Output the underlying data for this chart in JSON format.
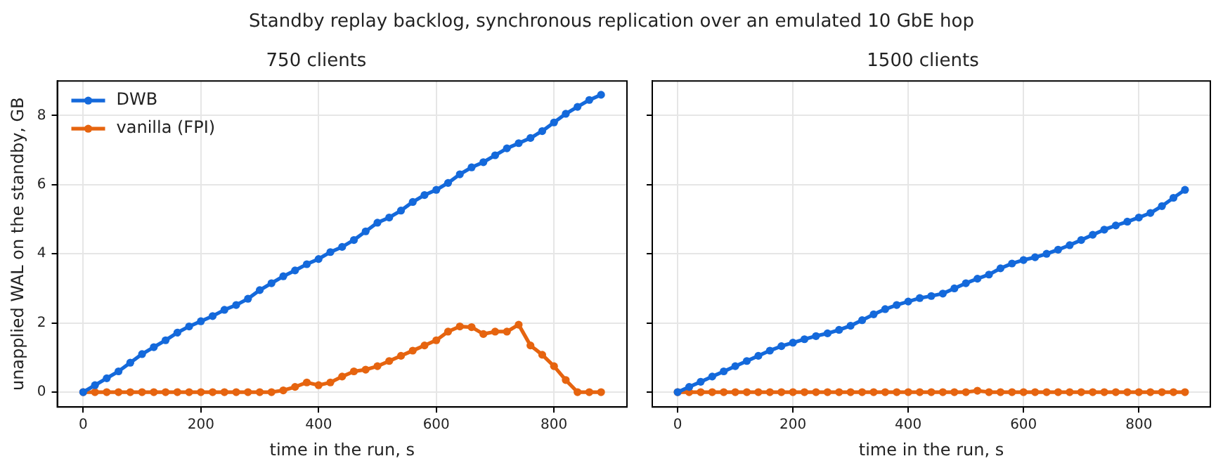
{
  "chart_data": [
    {
      "type": "line",
      "title": "750 clients",
      "annotations": [
        "Standby replay backlog, synchronous replication over an emulated 10 GbE hop"
      ],
      "xlabel": "time in the run, s",
      "ylabel": "unapplied WAL on the standby, GB",
      "x": [
        0,
        20,
        40,
        60,
        80,
        100,
        120,
        140,
        160,
        180,
        200,
        220,
        240,
        260,
        280,
        300,
        320,
        340,
        360,
        380,
        400,
        420,
        440,
        460,
        480,
        500,
        520,
        540,
        560,
        580,
        600,
        620,
        640,
        660,
        680,
        700,
        720,
        740,
        760,
        780,
        800,
        820,
        840,
        860,
        880
      ],
      "series": [
        {
          "name": "DWB",
          "color": "#1469db",
          "values": [
            0,
            0.2,
            0.4,
            0.6,
            0.85,
            1.1,
            1.3,
            1.5,
            1.72,
            1.9,
            2.05,
            2.2,
            2.38,
            2.52,
            2.7,
            2.95,
            3.15,
            3.35,
            3.52,
            3.7,
            3.85,
            4.05,
            4.2,
            4.4,
            4.65,
            4.9,
            5.05,
            5.25,
            5.5,
            5.7,
            5.85,
            6.05,
            6.3,
            6.5,
            6.65,
            6.85,
            7.05,
            7.2,
            7.35,
            7.55,
            7.8,
            8.05,
            8.25,
            8.45,
            8.6
          ]
        },
        {
          "name": "vanilla (FPI)",
          "color": "#e6640f",
          "values": [
            0,
            0,
            0,
            0,
            0,
            0,
            0,
            0,
            0,
            0,
            0,
            0,
            0,
            0,
            0,
            0,
            0,
            0.05,
            0.15,
            0.28,
            0.2,
            0.28,
            0.45,
            0.6,
            0.65,
            0.75,
            0.9,
            1.05,
            1.2,
            1.35,
            1.5,
            1.75,
            1.9,
            1.88,
            1.68,
            1.75,
            1.75,
            1.95,
            1.35,
            1.08,
            0.75,
            0.35,
            0,
            0,
            0
          ]
        }
      ],
      "xlim": [
        -44,
        924
      ],
      "xticks": [
        0,
        200,
        400,
        600,
        800
      ],
      "ylim": [
        -0.43,
        9.0
      ],
      "yticks": [
        0,
        2,
        4,
        6,
        8
      ],
      "grid": true,
      "legend": "top left",
      "marker": "circle",
      "line_style": "solid"
    },
    {
      "type": "line",
      "title": "1500 clients",
      "xlabel": "time in the run, s",
      "x": [
        0,
        20,
        40,
        60,
        80,
        100,
        120,
        140,
        160,
        180,
        200,
        220,
        240,
        260,
        280,
        300,
        320,
        340,
        360,
        380,
        400,
        420,
        440,
        460,
        480,
        500,
        520,
        540,
        560,
        580,
        600,
        620,
        640,
        660,
        680,
        700,
        720,
        740,
        760,
        780,
        800,
        820,
        840,
        860,
        880
      ],
      "series": [
        {
          "color": "#1469db",
          "values": [
            0,
            0.15,
            0.3,
            0.45,
            0.6,
            0.75,
            0.9,
            1.05,
            1.2,
            1.33,
            1.43,
            1.53,
            1.62,
            1.7,
            1.8,
            1.92,
            2.08,
            2.25,
            2.4,
            2.52,
            2.62,
            2.72,
            2.78,
            2.85,
            3.0,
            3.15,
            3.28,
            3.4,
            3.58,
            3.72,
            3.82,
            3.9,
            4.0,
            4.12,
            4.25,
            4.4,
            4.55,
            4.7,
            4.82,
            4.93,
            5.05,
            5.18,
            5.38,
            5.62,
            5.85
          ]
        },
        {
          "color": "#e6640f",
          "values": [
            0,
            0,
            0,
            0,
            0,
            0,
            0,
            0,
            0,
            0,
            0,
            0,
            0,
            0,
            0,
            0,
            0,
            0,
            0,
            0,
            0,
            0,
            0,
            0,
            0,
            0,
            0.04,
            0,
            0,
            0,
            0,
            0,
            0,
            0,
            0,
            0,
            0,
            0,
            0,
            0,
            0,
            0,
            0,
            0,
            0
          ]
        }
      ],
      "xlim": [
        -44,
        924
      ],
      "xticks": [
        0,
        200,
        400,
        600,
        800
      ],
      "ylim": [
        -0.43,
        9.0
      ],
      "yticks": [
        0,
        2,
        4,
        6,
        8
      ],
      "grid": true,
      "legend": false,
      "marker": "circle",
      "line_style": "solid",
      "tick_labels": "x"
    }
  ]
}
